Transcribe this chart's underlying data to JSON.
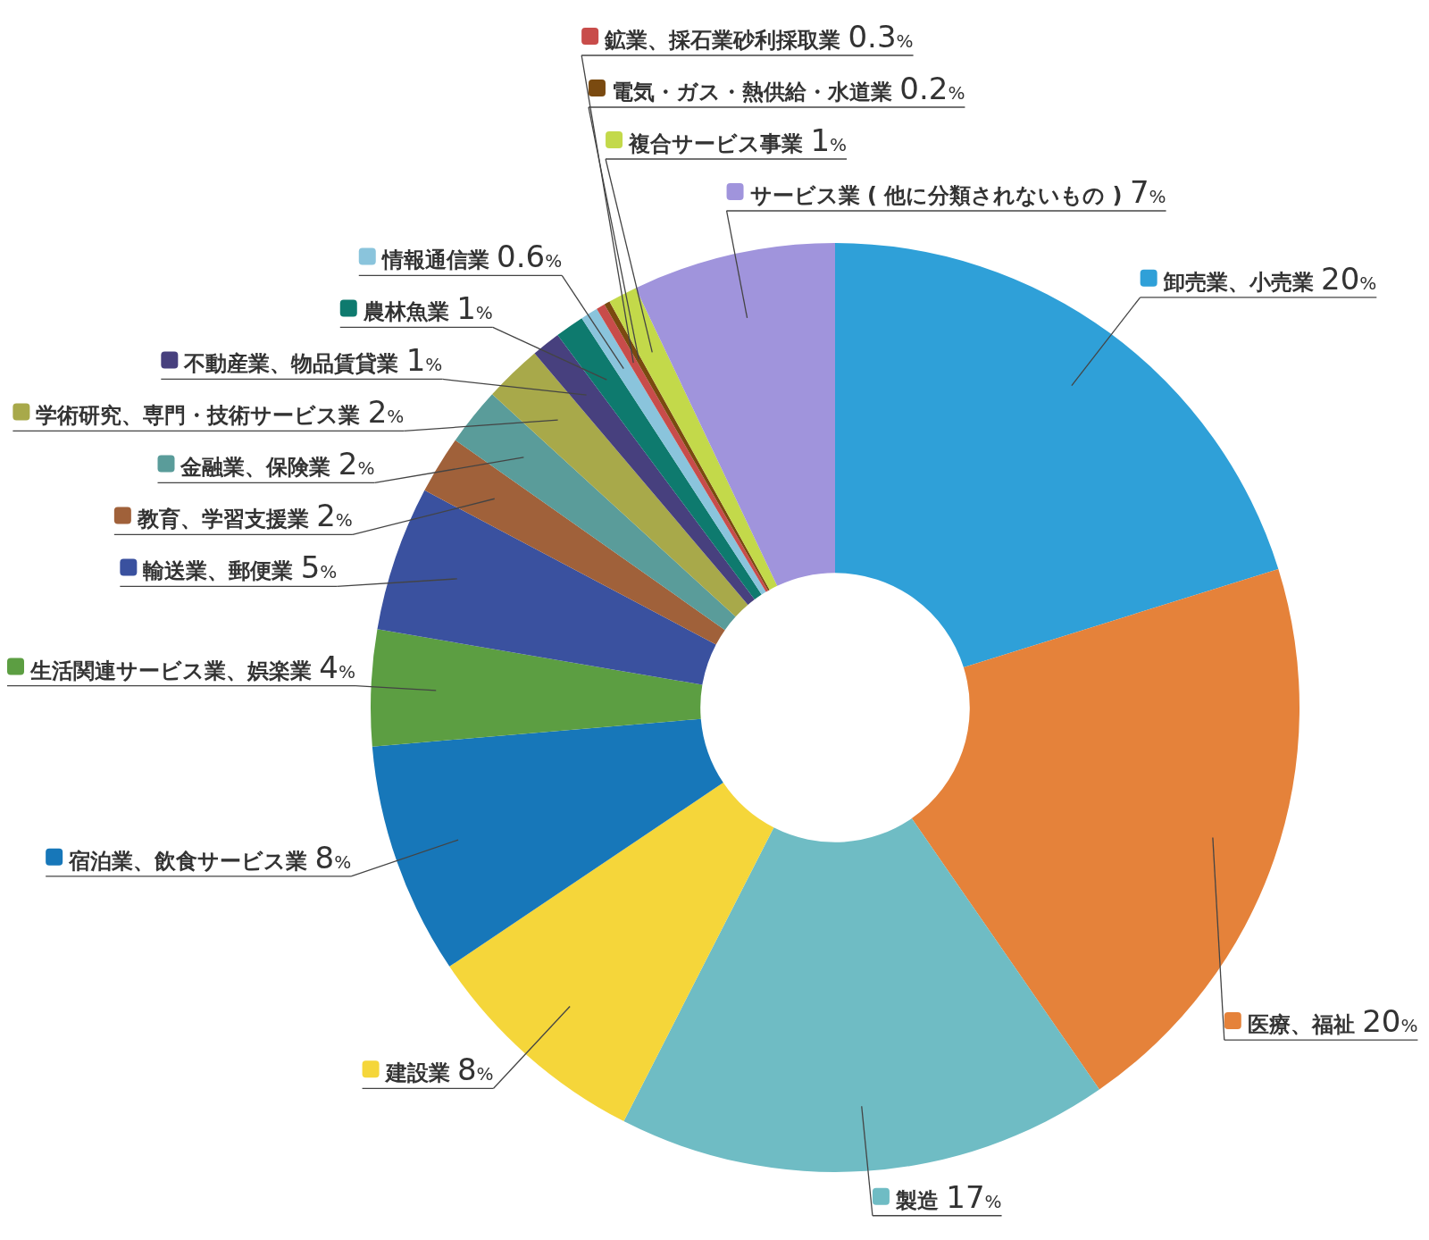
{
  "chart_data": {
    "type": "donut",
    "categories": [
      "卸売業、小売業",
      "医療、福祉",
      "製造",
      "建設業",
      "宿泊業、飲食サービス業",
      "生活関連サービス業、娯楽業",
      "輸送業、郵便業",
      "教育、学習支援業",
      "金融業、保険業",
      "学術研究、専門・技術サービス業",
      "不動産業、物品賃貸業",
      "農林魚業",
      "情報通信業",
      "鉱業、採石業砂利採取業",
      "電気・ガス・熱供給・水道業",
      "複合サービス事業",
      "サービス業 ( 他に分類されないもの )"
    ],
    "values": [
      20,
      20,
      17,
      8,
      8,
      4,
      5,
      2,
      2,
      2,
      1,
      1,
      0.6,
      0.3,
      0.2,
      1,
      7
    ],
    "legend": "left",
    "value_labels": [
      "20%",
      "20%",
      "17%",
      "8%",
      "8%",
      "4%",
      "5%",
      "2%",
      "2%",
      "2%",
      "1%",
      "1%",
      "0.6%",
      "0.3%",
      "0.2%",
      "1%",
      "7%"
    ],
    "colors": [
      "#2fa0d8",
      "#e5823a",
      "#6fbcc4",
      "#f5d63a",
      "#1777b9",
      "#5c9e42",
      "#3a519f",
      "#a0613a",
      "#5a9c9a",
      "#a8a94a",
      "#47407e",
      "#0e7a6e",
      "#8ac4dc",
      "#c84c4a",
      "#7a4a10",
      "#c3d94a",
      "#a094dc"
    ]
  }
}
